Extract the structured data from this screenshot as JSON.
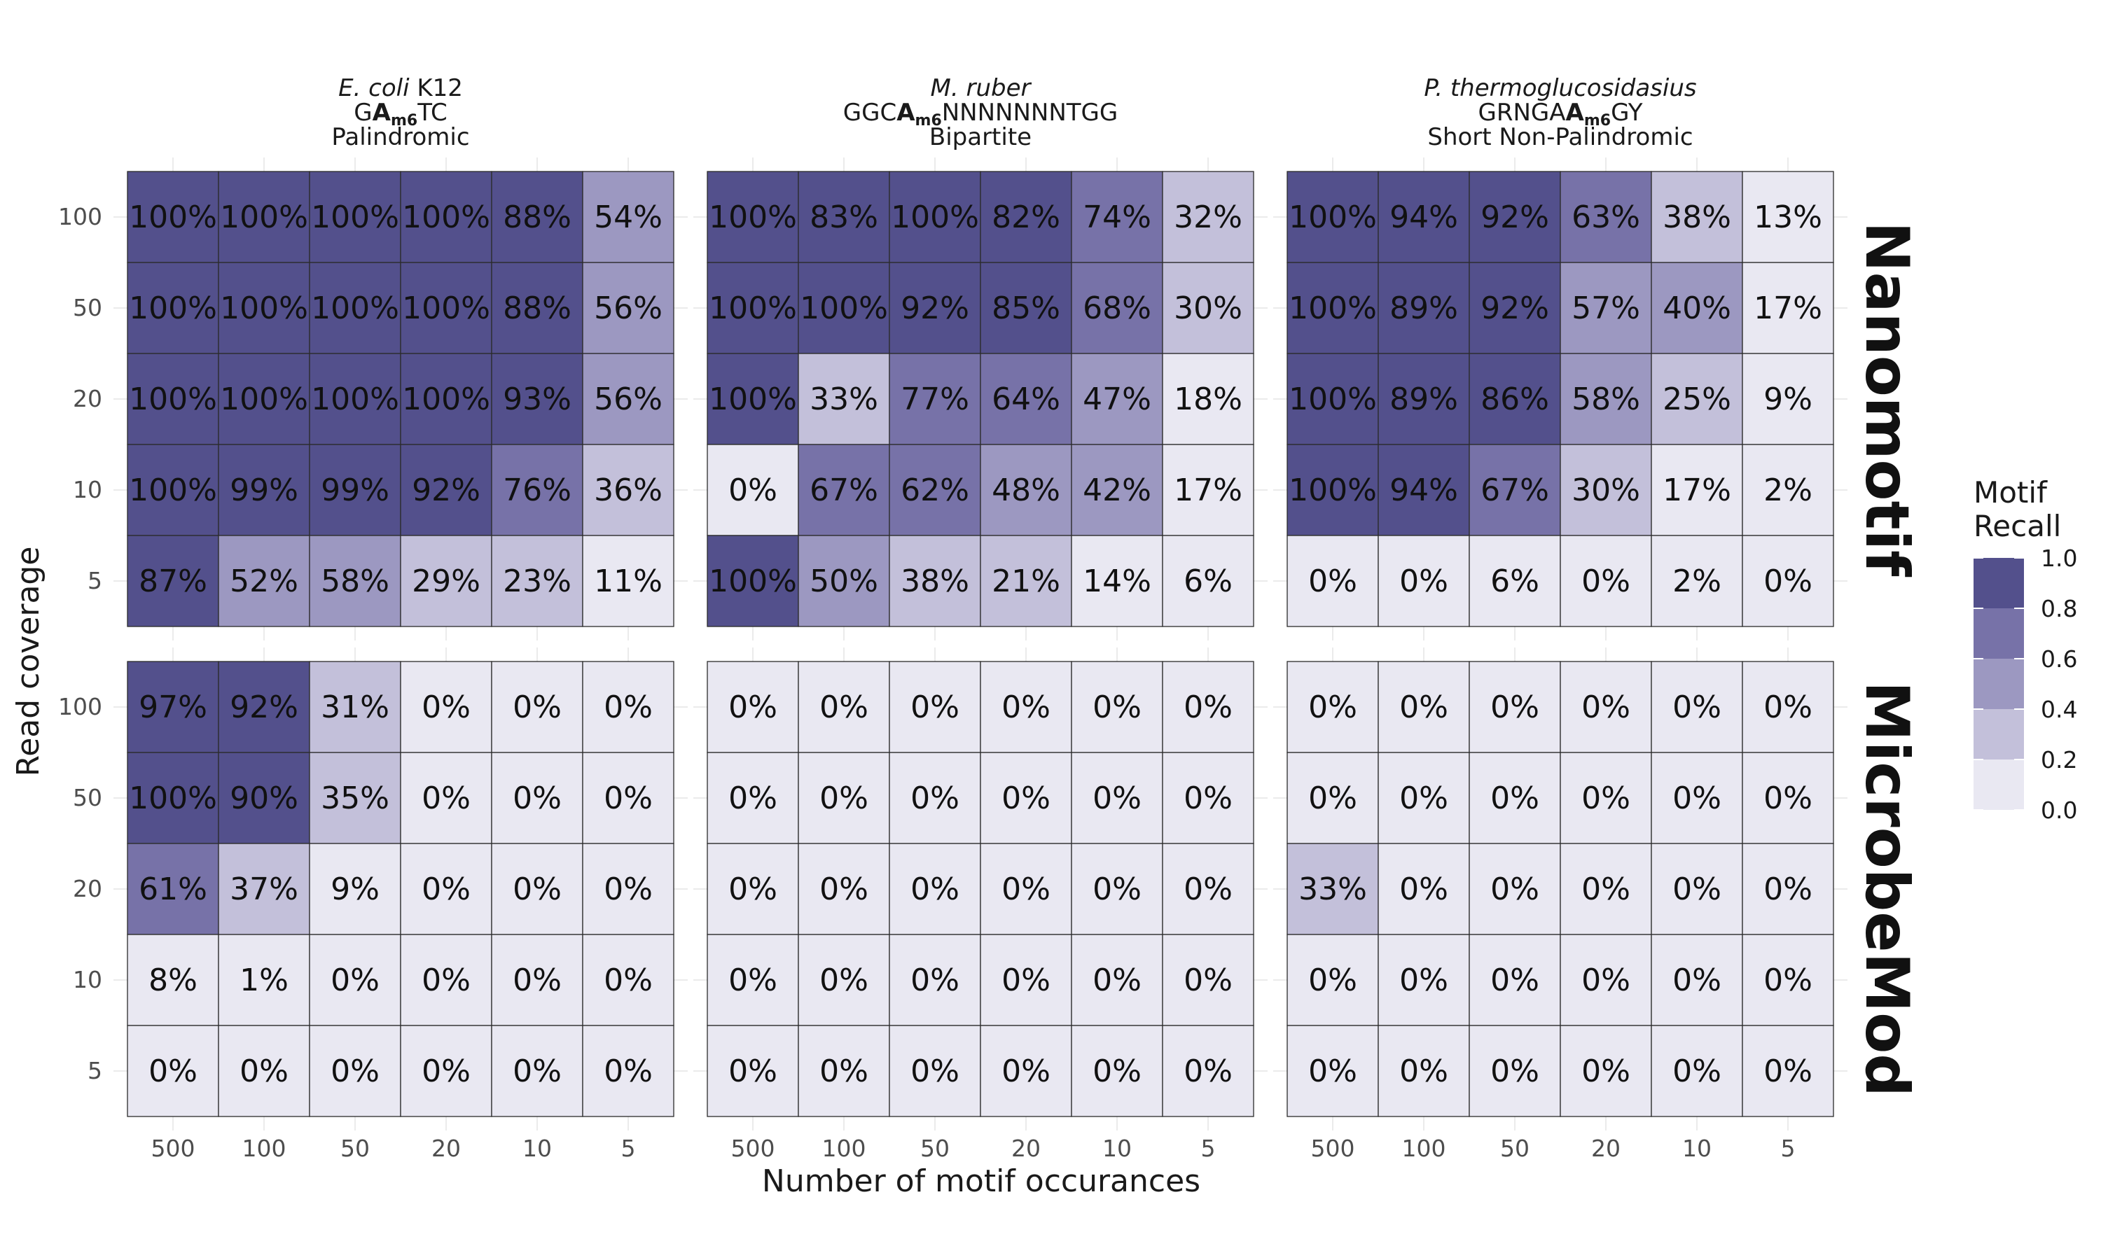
{
  "chart_data": {
    "type": "heatmap",
    "xlabel": "Number of motif occurances",
    "ylabel": "Read coverage",
    "x_categories": [
      "500",
      "100",
      "50",
      "20",
      "10",
      "5"
    ],
    "y_categories": [
      "100",
      "50",
      "20",
      "10",
      "5"
    ],
    "facet_columns": [
      {
        "species": "E. coli",
        "strain": " K12",
        "motif_pre": "G",
        "motif_mod": "A",
        "motif_sub": "m6",
        "motif_post": "TC",
        "motif_mid": "",
        "motif_mod2": "",
        "motif_sub2": "",
        "motif_post2": "",
        "motif_type": "Palindromic"
      },
      {
        "species": "M. ruber",
        "strain": "",
        "motif_pre": "GGC",
        "motif_mod": "A",
        "motif_sub": "m6",
        "motif_post": "NNNNNNNTGG",
        "motif_mid": "",
        "motif_mod2": "",
        "motif_sub2": "",
        "motif_post2": "",
        "motif_type": "Bipartite"
      },
      {
        "species": "P. thermoglucosidasius",
        "strain": "",
        "motif_pre": "GRNGA",
        "motif_mod": "A",
        "motif_sub": "m6",
        "motif_post": "",
        "motif_mid": "",
        "motif_mod2": "",
        "motif_sub2": "",
        "motif_post2": "GY",
        "motif_type": "Short Non-Palindromic"
      }
    ],
    "facet_rows": [
      "Nanomotif",
      "MicrobeMod"
    ],
    "legend": {
      "title_line1": "Motif",
      "title_line2": "Recall",
      "breaks": [
        "1.0",
        "0.8",
        "0.6",
        "0.4",
        "0.2",
        "0.0"
      ],
      "colors": [
        "#53508c",
        "#7772a8",
        "#9c98c1",
        "#c3c0da",
        "#e9e8f2"
      ],
      "position": "right"
    },
    "panels": [
      {
        "method": "Nanomotif",
        "column": 0,
        "values": [
          [
            100,
            100,
            100,
            100,
            88,
            54
          ],
          [
            100,
            100,
            100,
            100,
            88,
            56
          ],
          [
            100,
            100,
            100,
            100,
            93,
            56
          ],
          [
            100,
            99,
            99,
            92,
            76,
            36
          ],
          [
            87,
            52,
            58,
            29,
            23,
            11
          ]
        ]
      },
      {
        "method": "Nanomotif",
        "column": 1,
        "values": [
          [
            100,
            83,
            100,
            82,
            74,
            32
          ],
          [
            100,
            100,
            92,
            85,
            68,
            30
          ],
          [
            100,
            33,
            77,
            64,
            47,
            18
          ],
          [
            0,
            67,
            62,
            48,
            42,
            17
          ],
          [
            100,
            50,
            38,
            21,
            14,
            6
          ]
        ]
      },
      {
        "method": "Nanomotif",
        "column": 2,
        "values": [
          [
            100,
            94,
            92,
            63,
            38,
            13
          ],
          [
            100,
            89,
            92,
            57,
            40,
            17
          ],
          [
            100,
            89,
            86,
            58,
            25,
            9
          ],
          [
            100,
            94,
            67,
            30,
            17,
            2
          ],
          [
            0,
            0,
            6,
            0,
            2,
            0
          ]
        ]
      },
      {
        "method": "MicrobeMod",
        "column": 0,
        "values": [
          [
            97,
            92,
            31,
            0,
            0,
            0
          ],
          [
            100,
            90,
            35,
            0,
            0,
            0
          ],
          [
            61,
            37,
            9,
            0,
            0,
            0
          ],
          [
            8,
            1,
            0,
            0,
            0,
            0
          ],
          [
            0,
            0,
            0,
            0,
            0,
            0
          ]
        ]
      },
      {
        "method": "MicrobeMod",
        "column": 1,
        "values": [
          [
            0,
            0,
            0,
            0,
            0,
            0
          ],
          [
            0,
            0,
            0,
            0,
            0,
            0
          ],
          [
            0,
            0,
            0,
            0,
            0,
            0
          ],
          [
            0,
            0,
            0,
            0,
            0,
            0
          ],
          [
            0,
            0,
            0,
            0,
            0,
            0
          ]
        ]
      },
      {
        "method": "MicrobeMod",
        "column": 2,
        "values": [
          [
            0,
            0,
            0,
            0,
            0,
            0
          ],
          [
            0,
            0,
            0,
            0,
            0,
            0
          ],
          [
            33,
            0,
            0,
            0,
            0,
            0
          ],
          [
            0,
            0,
            0,
            0,
            0,
            0
          ],
          [
            0,
            0,
            0,
            0,
            0,
            0
          ]
        ]
      }
    ]
  }
}
